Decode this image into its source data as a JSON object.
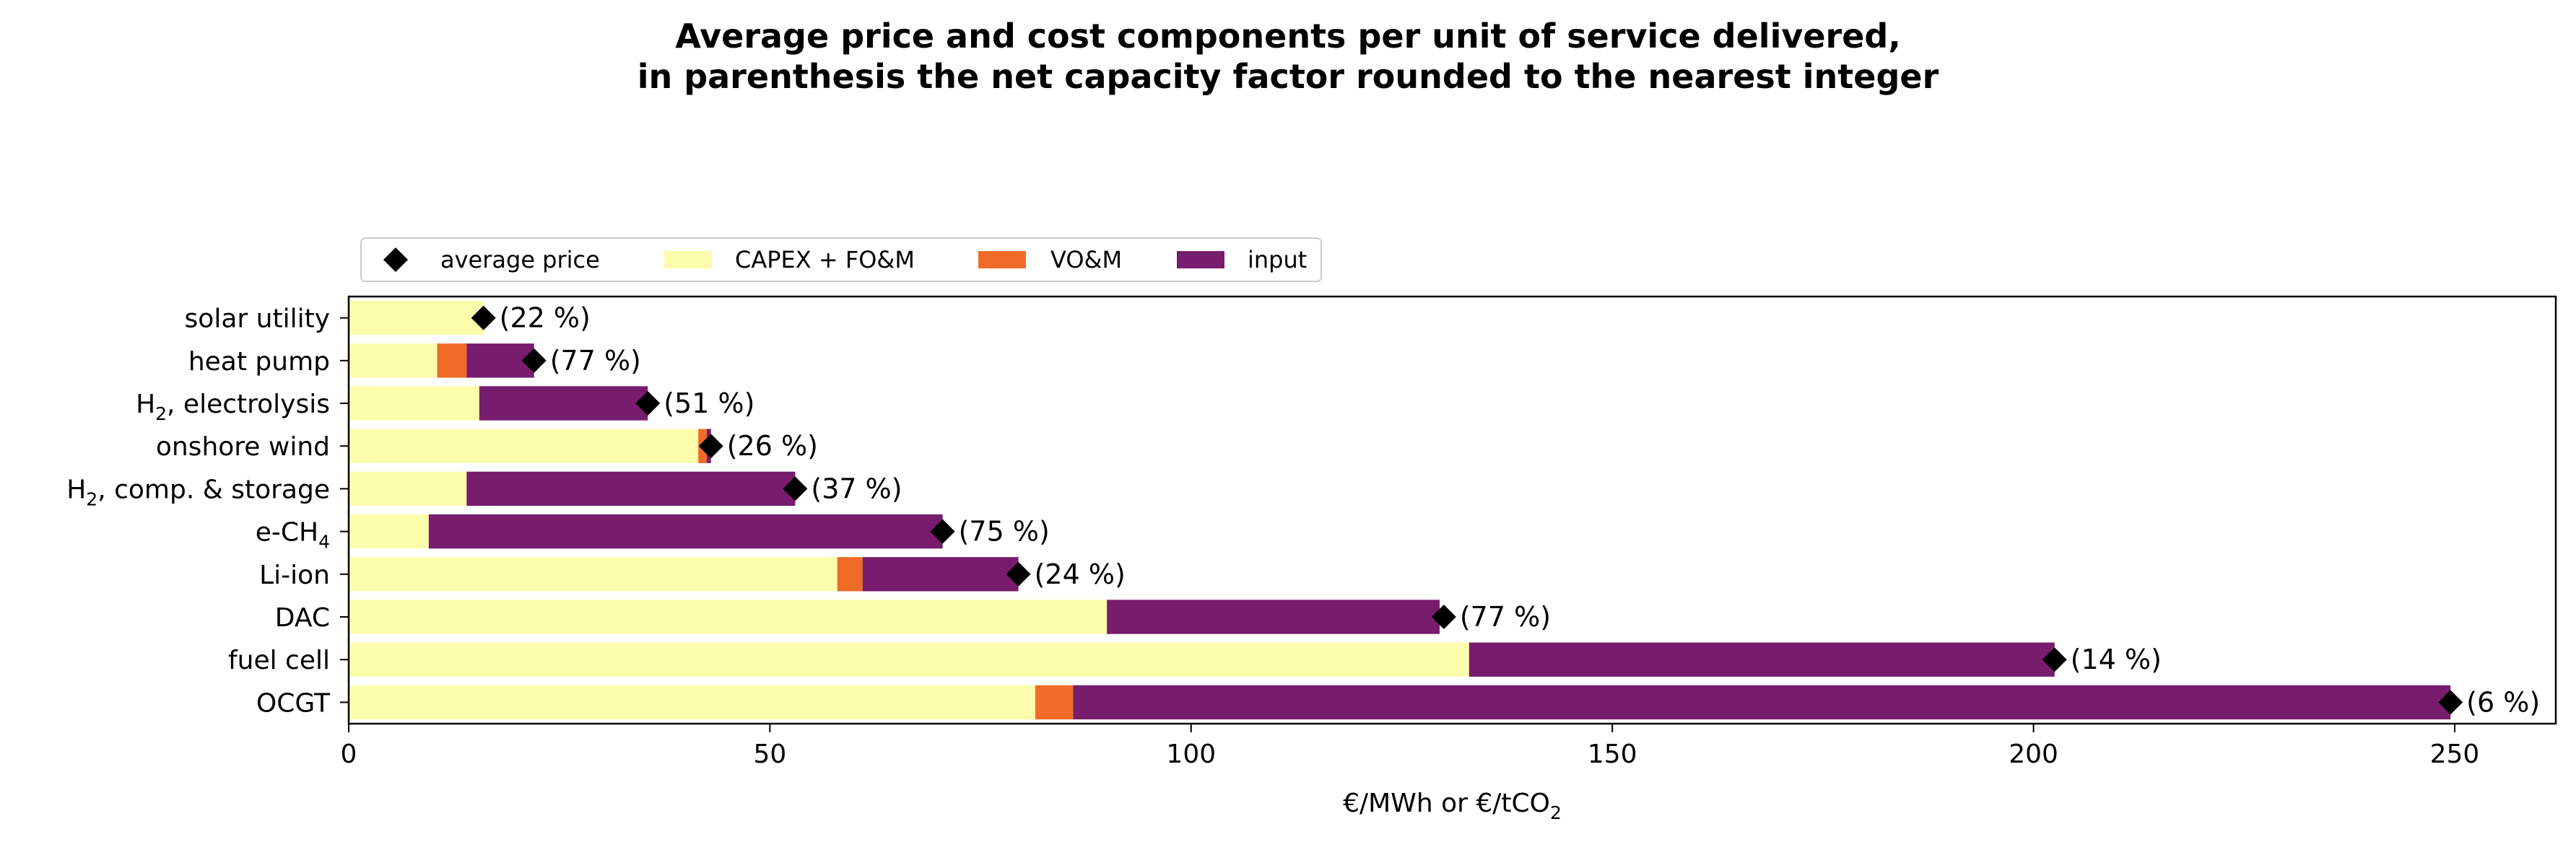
{
  "chart_data": {
    "type": "bar",
    "orientation": "horizontal",
    "stacked": true,
    "title_lines": [
      "Average price and cost components per unit of service delivered,",
      "in parenthesis the net capacity factor rounded to the nearest integer"
    ],
    "xlabel": {
      "prefix": "€/MWh or €/tCO",
      "sub": "2",
      "suffix": ""
    },
    "ylabel": "",
    "xlim": [
      0,
      262
    ],
    "xticks": [
      0,
      50,
      100,
      150,
      200,
      250
    ],
    "grid": false,
    "legend_position": "top-left, above plot",
    "categories": [
      {
        "prefix": "solar utility",
        "sub": "",
        "suffix": ""
      },
      {
        "prefix": "heat pump",
        "sub": "",
        "suffix": ""
      },
      {
        "prefix": "H",
        "sub": "2",
        "suffix": ", electrolysis"
      },
      {
        "prefix": "onshore wind",
        "sub": "",
        "suffix": ""
      },
      {
        "prefix": "H",
        "sub": "2",
        "suffix": ", comp. & storage"
      },
      {
        "prefix": "e-CH",
        "sub": "4",
        "suffix": ""
      },
      {
        "prefix": "Li-ion",
        "sub": "",
        "suffix": ""
      },
      {
        "prefix": "DAC",
        "sub": "",
        "suffix": ""
      },
      {
        "prefix": "fuel cell",
        "sub": "",
        "suffix": ""
      },
      {
        "prefix": "OCGT",
        "sub": "",
        "suffix": ""
      }
    ],
    "series": [
      {
        "name": "CAPEX + FO&M",
        "color": "#fcfdac",
        "values": [
          16.0,
          10.5,
          15.5,
          41.5,
          14.0,
          9.5,
          58.0,
          90.0,
          133.0,
          81.5
        ]
      },
      {
        "name": "VO&M",
        "color": "#f06b28",
        "values": [
          0.0,
          3.5,
          0.0,
          1.0,
          0.0,
          0.0,
          3.0,
          0.0,
          0.0,
          4.5
        ]
      },
      {
        "name": "input",
        "color": "#781c6d",
        "values": [
          0.0,
          8.0,
          20.0,
          0.5,
          39.0,
          61.0,
          18.5,
          39.5,
          69.5,
          163.5
        ]
      }
    ],
    "average_price": {
      "name": "average price",
      "color": "#000000",
      "marker": "diamond",
      "values": [
        16.0,
        22.0,
        35.5,
        43.0,
        53.0,
        70.5,
        79.5,
        130.0,
        202.5,
        249.5
      ]
    },
    "capacity_factor_labels": [
      "(22 %)",
      "(77 %)",
      "(51 %)",
      "(26 %)",
      "(37 %)",
      "(75 %)",
      "(24 %)",
      "(77 %)",
      "(14 %)",
      "(6 %)"
    ]
  }
}
